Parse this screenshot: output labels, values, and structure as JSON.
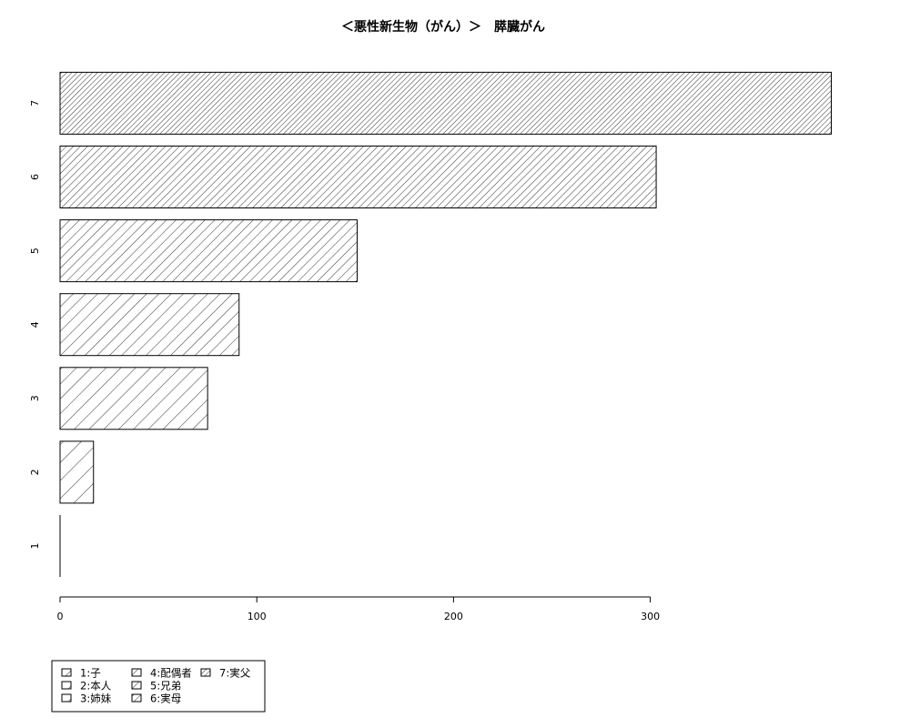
{
  "chart_data": {
    "type": "bar",
    "orientation": "horizontal",
    "title": "＜悪性新生物（がん）＞　膵臓がん",
    "categories": [
      "1",
      "2",
      "3",
      "4",
      "5",
      "6",
      "7"
    ],
    "values": [
      0,
      17,
      75,
      91,
      151,
      303,
      392
    ],
    "xlim": [
      0,
      392
    ],
    "xticks": [
      0,
      100,
      200,
      300
    ],
    "xlabel": "",
    "ylabel": "",
    "grid": false,
    "fill": "hatched",
    "legend": {
      "placement": "bottom-left",
      "entries": [
        "1:子",
        "2:本人",
        "3:姉妹",
        "4:配偶者",
        "5:兄弟",
        "6:実母",
        "7:実父"
      ]
    }
  }
}
